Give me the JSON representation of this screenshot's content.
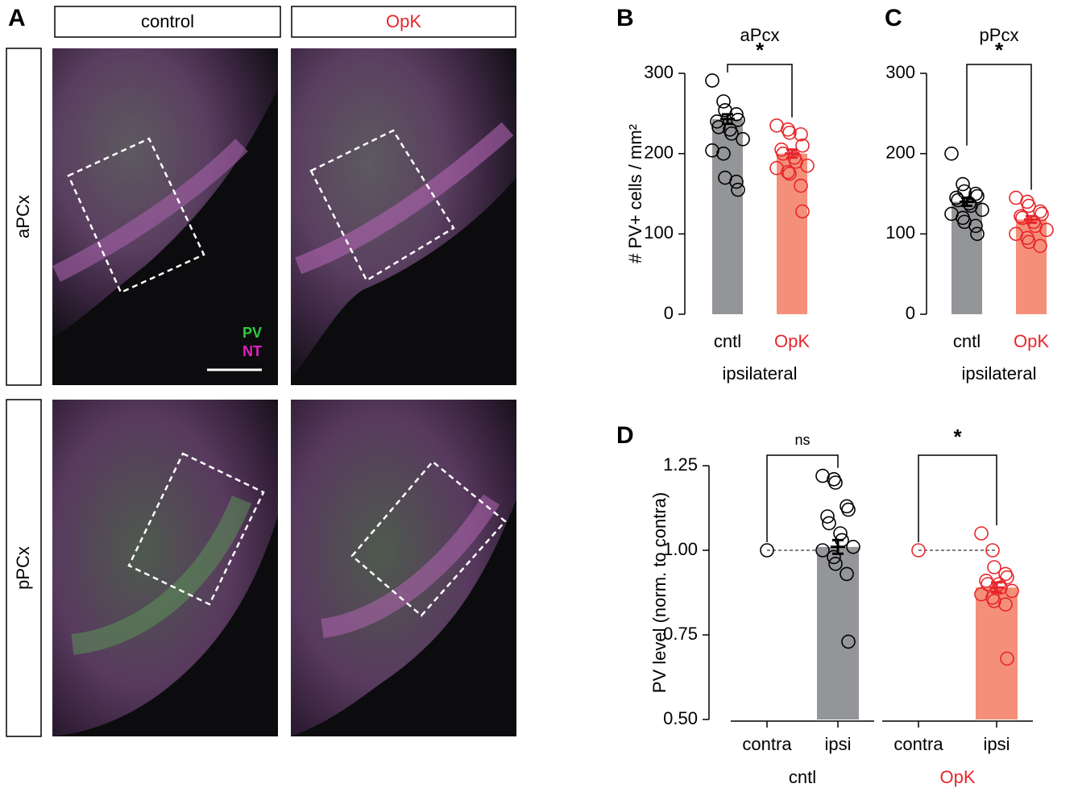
{
  "panel_a": {
    "panel": "A",
    "columns": [
      "control",
      "OpK"
    ],
    "column_colors": [
      "#000000",
      "#e8262b"
    ],
    "rows": [
      "aPCx",
      "pPCx"
    ],
    "channels": [
      {
        "name": "PV",
        "color": "#2ecc40"
      },
      {
        "name": "NT",
        "color": "#e020c0"
      }
    ]
  },
  "chart_data": [
    {
      "type": "bar",
      "panel": "B",
      "title": "aPcx",
      "ylabel": "# PV+ cells / mm²",
      "ylim": [
        0,
        300
      ],
      "yticks": [
        0,
        100,
        200,
        300
      ],
      "groups": [
        {
          "name": "ipsilateral",
          "name_color": "#000000",
          "categories": [
            "cntl",
            "OpK"
          ],
          "category_colors": [
            "#000000",
            "#e8262b"
          ],
          "bar_colors": [
            "#939598",
            "#f4907a"
          ],
          "point_colors": [
            "#000000",
            "#e8262b"
          ],
          "values": [
            243,
            200
          ],
          "errors": [
            6,
            5
          ],
          "points": [
            [
              291,
              265,
              254,
              249,
              242,
              240,
              233,
              230,
              225,
              218,
              204,
              200,
              170,
              165,
              155
            ],
            [
              235,
              230,
              226,
              224,
              210,
              205,
              200,
              195,
              190,
              185,
              182,
              177,
              175,
              160,
              128
            ]
          ],
          "significance": "*"
        }
      ]
    },
    {
      "type": "bar",
      "panel": "C",
      "title": "pPcx",
      "ylim": [
        0,
        300
      ],
      "yticks": [
        0,
        100,
        200,
        300
      ],
      "groups": [
        {
          "name": "ipsilateral",
          "name_color": "#000000",
          "categories": [
            "cntl",
            "OpK"
          ],
          "category_colors": [
            "#000000",
            "#e8262b"
          ],
          "bar_colors": [
            "#939598",
            "#f4907a"
          ],
          "point_colors": [
            "#000000",
            "#e8262b"
          ],
          "values": [
            140,
            118
          ],
          "errors": [
            5,
            4
          ],
          "points": [
            [
              200,
              162,
              153,
              150,
              147,
              145,
              142,
              138,
              135,
              130,
              125,
              120,
              115,
              110,
              100
            ],
            [
              145,
              140,
              135,
              128,
              125,
              122,
              120,
              115,
              110,
              105,
              100,
              95,
              90,
              85
            ]
          ],
          "significance": "*"
        }
      ]
    },
    {
      "type": "bar",
      "panel": "D",
      "ylabel": "PV level (norm. to contra)",
      "ylim": [
        0.5,
        1.25
      ],
      "yticks": [
        {
          "value": 0.5,
          "label": "0.50"
        },
        {
          "value": 0.75,
          "label": "0.75"
        },
        {
          "value": 1.0,
          "label": "1.00"
        },
        {
          "value": 1.25,
          "label": "1.25"
        }
      ],
      "reference_line": 1.0,
      "groups": [
        {
          "name": "cntl",
          "name_color": "#000000",
          "categories": [
            "contra",
            "ipsi"
          ],
          "category_colors": [
            "#000000",
            "#000000"
          ],
          "bar_colors": [
            "#939598",
            "#939598"
          ],
          "point_colors": [
            "#000000",
            "#000000"
          ],
          "values": [
            null,
            1.01
          ],
          "errors": [
            null,
            0.02
          ],
          "points": [
            [
              1.0
            ],
            [
              1.22,
              1.21,
              1.2,
              1.13,
              1.12,
              1.1,
              1.08,
              1.05,
              1.03,
              1.01,
              1.0,
              0.98,
              0.96,
              0.93,
              0.73
            ]
          ],
          "significance": "ns"
        },
        {
          "name": "OpK",
          "name_color": "#e8262b",
          "categories": [
            "contra",
            "ipsi"
          ],
          "category_colors": [
            "#000000",
            "#000000"
          ],
          "bar_colors": [
            "#f4907a",
            "#f4907a"
          ],
          "point_colors": [
            "#e8262b",
            "#e8262b"
          ],
          "values": [
            null,
            0.89
          ],
          "errors": [
            null,
            0.015
          ],
          "points": [
            [
              1.0
            ],
            [
              1.05,
              1.0,
              0.95,
              0.93,
              0.92,
              0.91,
              0.9,
              0.9,
              0.89,
              0.88,
              0.87,
              0.86,
              0.85,
              0.84,
              0.68
            ]
          ],
          "significance": "*"
        }
      ]
    }
  ]
}
